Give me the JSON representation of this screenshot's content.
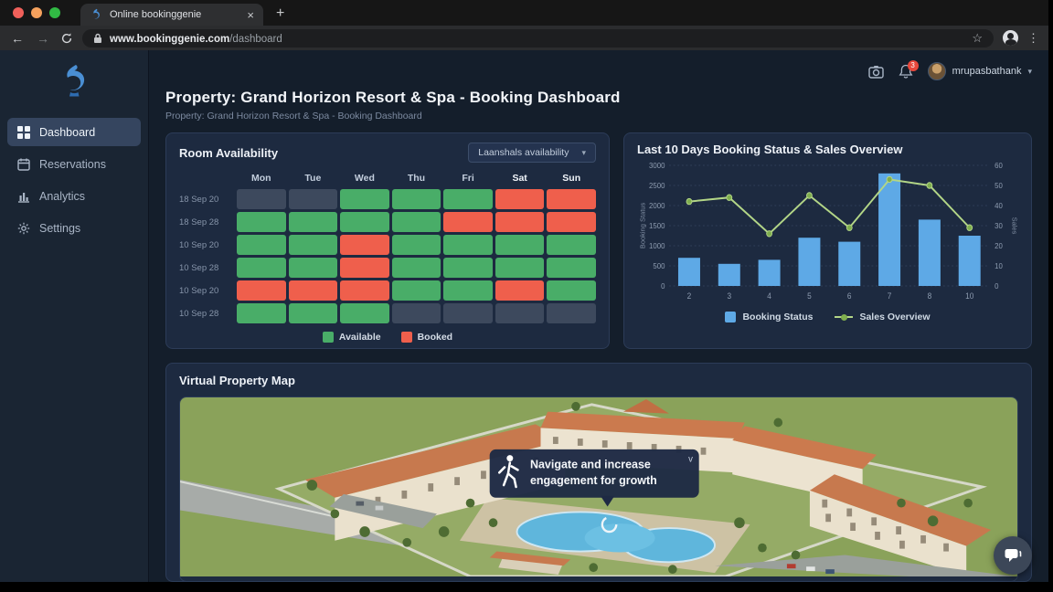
{
  "browser": {
    "tab_title": "Online bookinggenie",
    "url": {
      "domain": "www.bookinggenie.com",
      "path": "/dashboard"
    }
  },
  "topbar": {
    "username": "mrupasbathank",
    "notification_badge": "3"
  },
  "sidebar": {
    "items": [
      {
        "label": "Dashboard",
        "icon": "dashboard-grid-icon",
        "active": true
      },
      {
        "label": "Reservations",
        "icon": "calendar-icon",
        "active": false
      },
      {
        "label": "Analytics",
        "icon": "bar-chart-icon",
        "active": false
      },
      {
        "label": "Settings",
        "icon": "gear-icon",
        "active": false
      }
    ]
  },
  "page": {
    "title": "Property: Grand Horizon Resort & Spa - Booking Dashboard",
    "subtitle": "Property: Grand Horizon Resort & Spa - Booking Dashboard"
  },
  "availability": {
    "title": "Room Availability",
    "filter_value": "Laanshals availability",
    "weekdays": [
      "Mon",
      "Tue",
      "Wed",
      "Thu",
      "Fri",
      "Sat",
      "Sun"
    ],
    "cell_colors": {
      "available": "#49ad68",
      "booked": "#ef5f4c",
      "empty": "#3d495d"
    },
    "rows": [
      {
        "date": "18 Sep 20",
        "cells": [
          "empty",
          "empty",
          "available",
          "available",
          "available",
          "booked",
          "booked"
        ]
      },
      {
        "date": "18 Sep 28",
        "cells": [
          "available",
          "available",
          "available",
          "available",
          "booked",
          "booked",
          "booked"
        ]
      },
      {
        "date": "10 Sep 20",
        "cells": [
          "available",
          "available",
          "booked",
          "available",
          "available",
          "available",
          "available"
        ]
      },
      {
        "date": "10 Sep 28",
        "cells": [
          "available",
          "available",
          "booked",
          "available",
          "available",
          "available",
          "available"
        ]
      },
      {
        "date": "10 Sep 20",
        "cells": [
          "booked",
          "booked",
          "booked",
          "available",
          "available",
          "booked",
          "available"
        ]
      },
      {
        "date": "10 Sep 28",
        "cells": [
          "available",
          "available",
          "available",
          "empty",
          "empty",
          "empty",
          "empty"
        ]
      }
    ],
    "legend": [
      {
        "label": "Available",
        "key": "available"
      },
      {
        "label": "Booked",
        "key": "booked"
      }
    ]
  },
  "chart_data": {
    "type": "bar+line",
    "title": "Last 10 Days Booking Status & Sales Overview",
    "categories": [
      "2",
      "3",
      "4",
      "5",
      "6",
      "7",
      "8",
      "10"
    ],
    "series": [
      {
        "name": "Booking Status",
        "type": "bar",
        "axis": "left",
        "color": "#5ea9e6",
        "values": [
          700,
          550,
          650,
          1200,
          1100,
          2800,
          1650,
          1250
        ]
      },
      {
        "name": "Sales Overview",
        "type": "line",
        "axis": "right",
        "color": "#b3d687",
        "marker_color": "#7fae4e",
        "values": [
          42,
          44,
          26,
          45,
          29,
          53,
          50,
          29
        ]
      }
    ],
    "left_axis": {
      "label": "Booking Status",
      "min": 0,
      "max": 3000,
      "step": 500
    },
    "right_axis": {
      "label": "Sales",
      "min": 0,
      "max": 60,
      "step": 10
    },
    "grid": true,
    "legend_position": "bottom"
  },
  "map": {
    "title": "Virtual Property Map",
    "tooltip_text": "Navigate and increase engagement for growth"
  }
}
